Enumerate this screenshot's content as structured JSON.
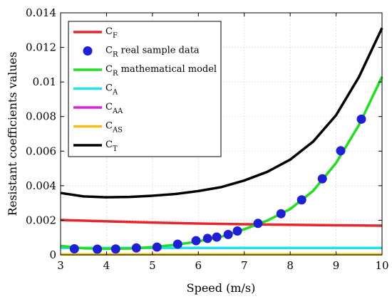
{
  "chart_data": {
    "type": "line",
    "xlabel": "Speed (m/s)",
    "ylabel": "Resistant coefficients values",
    "xlim": [
      3,
      10
    ],
    "ylim": [
      0,
      0.014
    ],
    "x_ticks": [
      "3",
      "4",
      "5",
      "6",
      "7",
      "8",
      "9",
      "10"
    ],
    "y_ticks": [
      "0",
      "0.002",
      "0.004",
      "0.006",
      "0.008",
      "0.01",
      "0.012",
      "0.014"
    ],
    "grid": true,
    "legend_position": "top-left",
    "series": [
      {
        "name": "F",
        "symbol": "C",
        "style": "line",
        "color": "#e8262a",
        "x": [
          3,
          4,
          5,
          6,
          7,
          8,
          9,
          10
        ],
        "y": [
          0.00202,
          0.00194,
          0.00187,
          0.00181,
          0.00177,
          0.00174,
          0.00171,
          0.00169
        ]
      },
      {
        "name": "R",
        "label_suffix": " real sample data",
        "symbol": "C",
        "style": "marker",
        "color": "#1f1fd6",
        "x": [
          3.3,
          3.8,
          4.2,
          4.65,
          5.1,
          5.55,
          5.95,
          6.2,
          6.4,
          6.65,
          6.85,
          7.3,
          7.8,
          8.25,
          8.7,
          9.1,
          9.55
        ],
        "y": [
          0.00035,
          0.00033,
          0.00034,
          0.0004,
          0.00045,
          0.00062,
          0.00082,
          0.00095,
          0.00103,
          0.00118,
          0.00138,
          0.00182,
          0.00238,
          0.00318,
          0.0044,
          0.00602,
          0.00785
        ]
      },
      {
        "name": "R",
        "label_suffix": " mathematical model",
        "symbol": "C",
        "style": "line",
        "color": "#22dd22",
        "x": [
          3,
          3.5,
          4,
          4.5,
          5,
          5.5,
          6,
          6.5,
          7,
          7.5,
          8,
          8.5,
          9,
          9.5,
          10
        ],
        "y": [
          0.00052,
          0.00038,
          0.00035,
          0.00037,
          0.00045,
          0.00058,
          0.00078,
          0.00105,
          0.00148,
          0.00198,
          0.00265,
          0.0037,
          0.00532,
          0.00752,
          0.0103
        ]
      },
      {
        "name": "A",
        "symbol": "C",
        "style": "line",
        "color": "#22e0f0",
        "x": [
          3,
          10
        ],
        "y": [
          0.0004,
          0.0004
        ]
      },
      {
        "name": "AA",
        "symbol": "C",
        "style": "line",
        "color": "#e020e0",
        "x": [
          3,
          10
        ],
        "y": [
          3e-05,
          3e-05
        ]
      },
      {
        "name": "AS",
        "symbol": "C",
        "style": "line",
        "color": "#f2c01a",
        "x": [
          3,
          10
        ],
        "y": [
          3e-05,
          3e-05
        ]
      },
      {
        "name": "T",
        "symbol": "C",
        "style": "line",
        "color": "#000000",
        "x": [
          3,
          3.5,
          4,
          4.5,
          5,
          5.5,
          6,
          6.5,
          7,
          7.5,
          8,
          8.5,
          9,
          9.5,
          10
        ],
        "y": [
          0.00358,
          0.00338,
          0.00333,
          0.00335,
          0.00342,
          0.00352,
          0.00369,
          0.00392,
          0.0043,
          0.0048,
          0.00551,
          0.00655,
          0.00808,
          0.0103,
          0.01312
        ]
      }
    ]
  }
}
